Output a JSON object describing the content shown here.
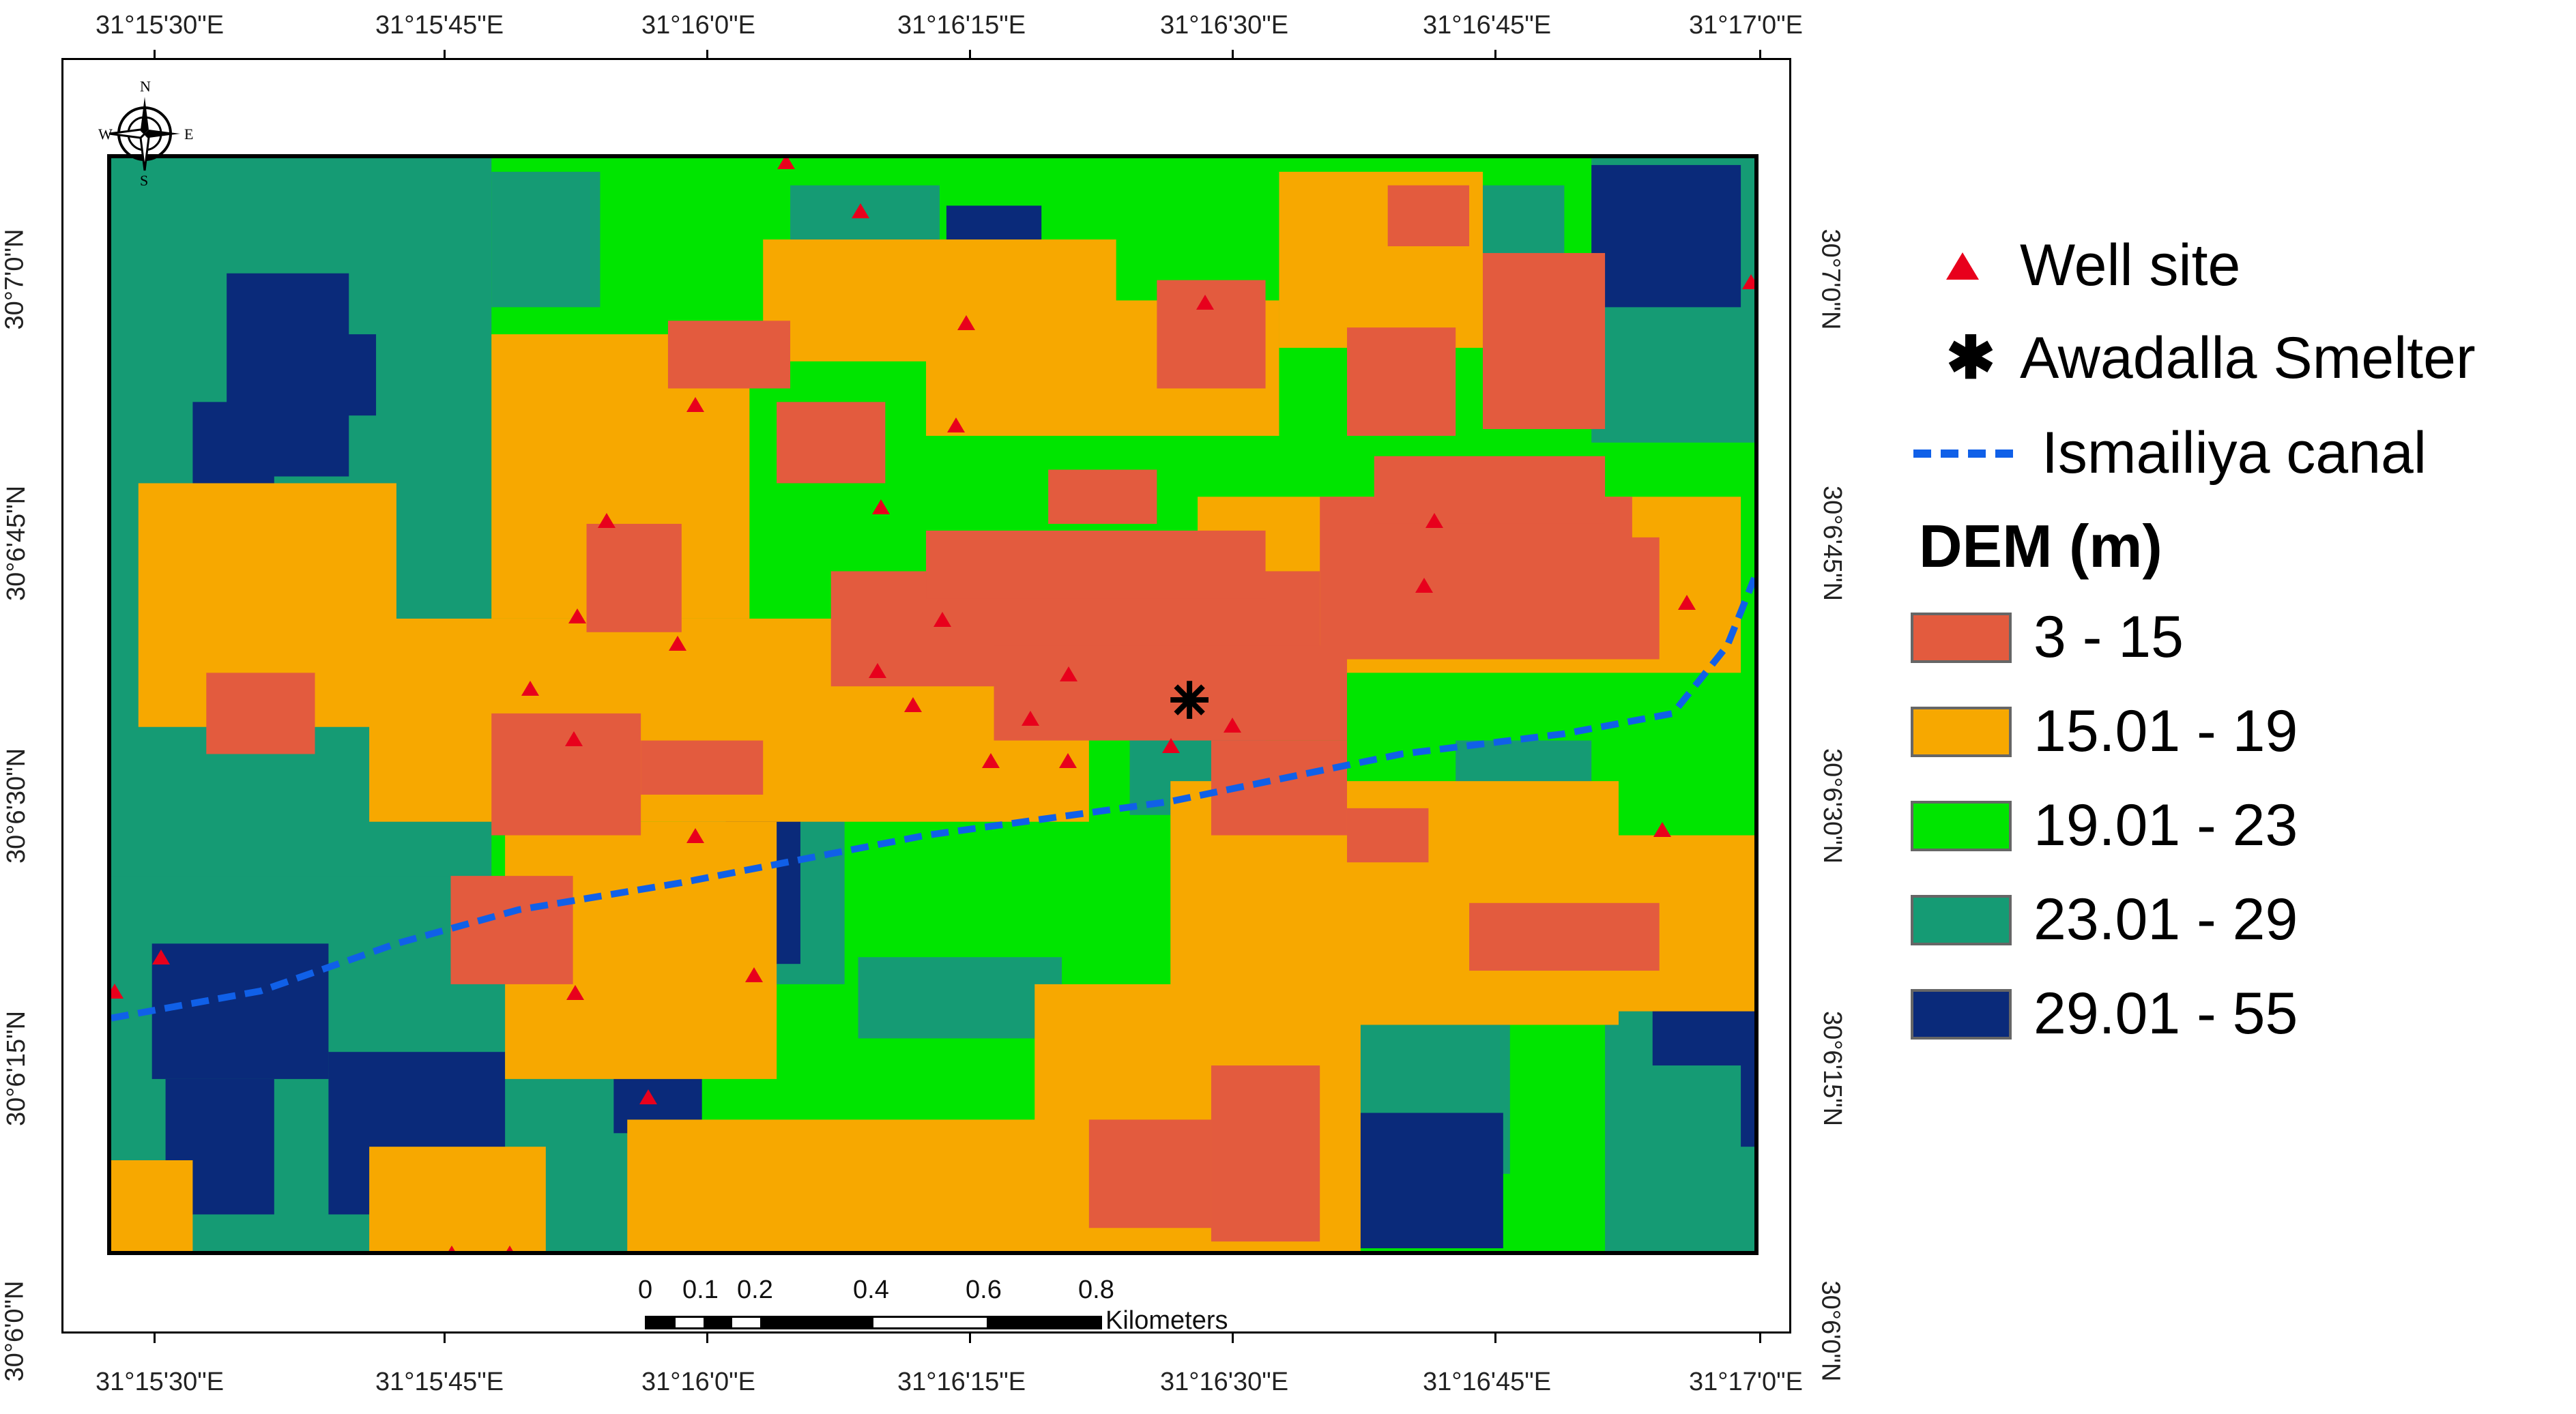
{
  "map": {
    "top_lon_labels": [
      "31°15'30\"E",
      "31°15'45\"E",
      "31°16'0\"E",
      "31°16'15\"E",
      "31°16'30\"E",
      "31°16'45\"E",
      "31°17'0\"E"
    ],
    "bottom_lon_labels": [
      "31°15'30\"E",
      "31°15'45\"E",
      "31°16'0\"E",
      "31°16'15\"E",
      "31°16'30\"E",
      "31°16'45\"E",
      "31°17'0\"E"
    ],
    "left_lat_labels": [
      "30°7'0\"N",
      "30°6'45\"N",
      "30°6'30\"N",
      "30°6'15\"N",
      "30°6'0\"N"
    ],
    "right_lat_labels": [
      "30°7'0\"N",
      "30°6'45\"N",
      "30°6'30\"N",
      "30°6'15\"N",
      "30°6'0\"N"
    ],
    "north_arrow": {
      "n": "N",
      "s": "S",
      "e": "E",
      "w": "W"
    },
    "scale_bar": {
      "ticks": [
        "0",
        "0.1",
        "0.2",
        "0.4",
        "0.6",
        "0.8"
      ],
      "unit": "Kilometers"
    },
    "colors": {
      "class_3_15": "#e35b3e",
      "class_15_19": "#f7a800",
      "class_19_23": "#00e500",
      "class_23_29": "#159b74",
      "class_29_55": "#0a2a7a",
      "well": "#e8001c",
      "canal": "#1060e8"
    }
  },
  "legend": {
    "well_label": "Well site",
    "smelter_label": "Awadalla Smelter",
    "canal_label": "Ismailiya canal",
    "dem_title": "DEM (m)",
    "classes": [
      "3 - 15",
      "15.01 - 19",
      "19.01 - 23",
      "23.01 - 29",
      "29.01 - 55"
    ]
  }
}
